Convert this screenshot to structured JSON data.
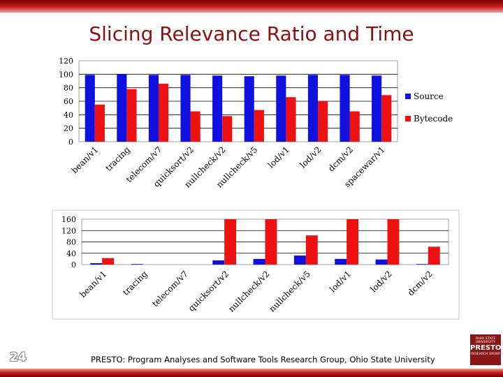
{
  "slide": {
    "title": "Slicing Relevance Ratio and Time",
    "page_number": "24",
    "footer": "PRESTO: Program Analyses and Software Tools Research Group, Ohio State University",
    "logo": {
      "line1": "OHIO STATE UNIVERSITY",
      "line2": "PRESTO",
      "line3": "RESEARCH GROUP"
    }
  },
  "colors": {
    "source": "#1010e0",
    "bytecode": "#ee1111",
    "accent": "#8b1010"
  },
  "chart_data": [
    {
      "type": "bar",
      "categories": [
        "bean/v1",
        "tracing",
        "telecom/v7",
        "quicksort/v2",
        "nullcheck/v2",
        "nullcheck/v5",
        "lod/v1",
        "lod/v2",
        "dcm/v2",
        "spacewar/v1"
      ],
      "series": [
        {
          "name": "Source",
          "color": "#1010e0",
          "values": [
            99,
            100,
            99,
            99,
            98,
            97,
            98,
            99,
            99,
            98
          ]
        },
        {
          "name": "Bytecode",
          "color": "#ee1111",
          "values": [
            55,
            78,
            86,
            45,
            38,
            47,
            66,
            60,
            45,
            69
          ]
        }
      ],
      "yticks": [
        0,
        20,
        40,
        60,
        80,
        100,
        120
      ],
      "ylim": [
        0,
        120
      ],
      "grid": true,
      "legend": "right"
    },
    {
      "type": "bar",
      "categories": [
        "bean/v1",
        "tracing",
        "telecom/v7",
        "quicksort/v2",
        "nullcheck/v2",
        "nullcheck/v5",
        "lod/v1",
        "lod/v2",
        "dcm/v2"
      ],
      "series": [
        {
          "color": "#1010e0",
          "values": [
            5,
            2,
            0,
            15,
            20,
            32,
            20,
            18,
            2
          ]
        },
        {
          "color": "#ee1111",
          "values": [
            23,
            0,
            0,
            160,
            160,
            103,
            160,
            160,
            63
          ]
        }
      ],
      "yticks": [
        0,
        40,
        80,
        120,
        160
      ],
      "ylim": [
        0,
        160
      ],
      "grid": true,
      "legend": "none"
    }
  ]
}
